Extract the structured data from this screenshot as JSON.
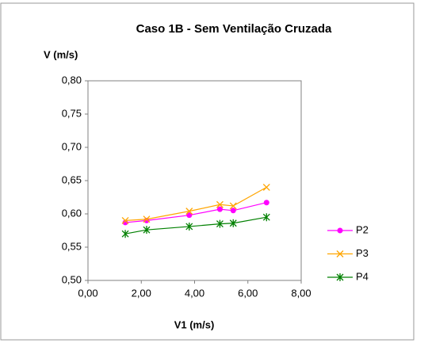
{
  "chart_data": {
    "type": "line",
    "title": "Caso 1B - Sem Ventilação Cruzada",
    "x_label": "V1 (m/s)",
    "y_label": "V (m/s)",
    "x": [
      1.4,
      2.2,
      3.8,
      4.95,
      5.45,
      6.7
    ],
    "series": [
      {
        "name": "P2",
        "color": "#ff00ff",
        "marker": "circle",
        "values": [
          0.587,
          0.59,
          0.598,
          0.607,
          0.605,
          0.617
        ]
      },
      {
        "name": "P3",
        "color": "#ffa500",
        "marker": "x",
        "values": [
          0.59,
          0.592,
          0.604,
          0.614,
          0.612,
          0.64
        ]
      },
      {
        "name": "P4",
        "color": "#008000",
        "marker": "star",
        "values": [
          0.57,
          0.576,
          0.581,
          0.585,
          0.586,
          0.595
        ]
      }
    ],
    "xlim": [
      0,
      8
    ],
    "xticks": [
      {
        "value": 0,
        "label": "0,00"
      },
      {
        "value": 2,
        "label": "2,00"
      },
      {
        "value": 4,
        "label": "4,00"
      },
      {
        "value": 6,
        "label": "6,00"
      },
      {
        "value": 8,
        "label": "8,00"
      }
    ],
    "ylim": [
      0.5,
      0.8
    ],
    "yticks": [
      {
        "value": 0.5,
        "label": "0,50"
      },
      {
        "value": 0.55,
        "label": "0,55"
      },
      {
        "value": 0.6,
        "label": "0,60"
      },
      {
        "value": 0.65,
        "label": "0,65"
      },
      {
        "value": 0.7,
        "label": "0,70"
      },
      {
        "value": 0.75,
        "label": "0,75"
      },
      {
        "value": 0.8,
        "label": "0,80"
      }
    ],
    "legend": "right"
  }
}
